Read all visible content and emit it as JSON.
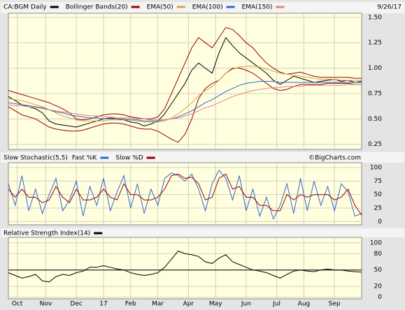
{
  "chart_data": [
    {
      "type": "line",
      "date_label": "9/26/17",
      "ylim": [
        0.2,
        1.54
      ],
      "yticks": [
        {
          "value": 1.5,
          "label": "1.50"
        },
        1.25,
        {
          "value": 1,
          "label": "1.00"
        },
        0.75,
        {
          "value": 0.5,
          "label": "0.50"
        },
        0.25
      ],
      "grid": true,
      "series": [
        {
          "name": "CA:BGM Daily",
          "color": "#000000",
          "values": [
            0.72,
            0.68,
            0.64,
            0.62,
            0.6,
            0.56,
            0.48,
            0.45,
            0.44,
            0.43,
            0.42,
            0.44,
            0.46,
            0.48,
            0.5,
            0.51,
            0.5,
            0.49,
            0.47,
            0.46,
            0.43,
            0.45,
            0.48,
            0.55,
            0.65,
            0.75,
            0.85,
            0.98,
            1.05,
            1.0,
            0.95,
            1.15,
            1.3,
            1.22,
            1.15,
            1.1,
            1.05,
            1.0,
            0.95,
            0.88,
            0.84,
            0.88,
            0.92,
            0.9,
            0.88,
            0.86,
            0.87,
            0.88,
            0.89,
            0.87,
            0.88,
            0.86,
            0.87
          ]
        },
        {
          "name": "Bollinger Bands(20)",
          "color": "#990000",
          "values": [
            0.78,
            0.76,
            0.74,
            0.72,
            0.7,
            0.68,
            0.66,
            0.63,
            0.6,
            0.56,
            0.5,
            0.49,
            0.5,
            0.52,
            0.54,
            0.55,
            0.55,
            0.54,
            0.52,
            0.51,
            0.5,
            0.5,
            0.52,
            0.6,
            0.75,
            0.9,
            1.05,
            1.2,
            1.3,
            1.25,
            1.2,
            1.3,
            1.4,
            1.38,
            1.32,
            1.25,
            1.2,
            1.12,
            1.05,
            1.0,
            0.96,
            0.94,
            0.95,
            0.96,
            0.94,
            0.92,
            0.91,
            0.91,
            0.91,
            0.91,
            0.91,
            0.9,
            0.9
          ],
          "lower": [
            0.62,
            0.58,
            0.54,
            0.52,
            0.5,
            0.46,
            0.42,
            0.4,
            0.39,
            0.38,
            0.38,
            0.39,
            0.41,
            0.43,
            0.45,
            0.46,
            0.46,
            0.45,
            0.43,
            0.41,
            0.4,
            0.4,
            0.38,
            0.34,
            0.3,
            0.27,
            0.35,
            0.5,
            0.7,
            0.8,
            0.85,
            0.88,
            0.95,
            1.0,
            1.0,
            0.98,
            0.95,
            0.9,
            0.85,
            0.8,
            0.78,
            0.79,
            0.82,
            0.84,
            0.84,
            0.84,
            0.84,
            0.85,
            0.85,
            0.85,
            0.85,
            0.84,
            0.84
          ]
        },
        {
          "name": "EMA(50)",
          "color": "#d9a441",
          "values": [
            0.7,
            0.69,
            0.68,
            0.66,
            0.64,
            0.62,
            0.59,
            0.56,
            0.53,
            0.51,
            0.49,
            0.48,
            0.48,
            0.48,
            0.48,
            0.49,
            0.49,
            0.49,
            0.49,
            0.48,
            0.47,
            0.47,
            0.47,
            0.48,
            0.51,
            0.55,
            0.6,
            0.66,
            0.73,
            0.78,
            0.82,
            0.88,
            0.95,
            0.99,
            1.01,
            1.02,
            1.02,
            1.01,
            0.99,
            0.97,
            0.95,
            0.94,
            0.93,
            0.92,
            0.91,
            0.9,
            0.89,
            0.89,
            0.89,
            0.88,
            0.88,
            0.88,
            0.88
          ]
        },
        {
          "name": "EMA(100)",
          "color": "#3366cc",
          "values": [
            0.66,
            0.65,
            0.64,
            0.63,
            0.62,
            0.61,
            0.59,
            0.57,
            0.56,
            0.54,
            0.53,
            0.52,
            0.51,
            0.51,
            0.5,
            0.5,
            0.5,
            0.5,
            0.49,
            0.49,
            0.48,
            0.48,
            0.48,
            0.49,
            0.5,
            0.52,
            0.55,
            0.58,
            0.62,
            0.66,
            0.69,
            0.73,
            0.77,
            0.8,
            0.83,
            0.85,
            0.86,
            0.87,
            0.87,
            0.87,
            0.86,
            0.86,
            0.86,
            0.86,
            0.86,
            0.86,
            0.86,
            0.86,
            0.86,
            0.86,
            0.86,
            0.86,
            0.86
          ]
        },
        {
          "name": "EMA(150)",
          "color": "#e08585",
          "values": [
            0.64,
            0.63,
            0.63,
            0.62,
            0.61,
            0.6,
            0.59,
            0.58,
            0.57,
            0.56,
            0.55,
            0.54,
            0.53,
            0.53,
            0.52,
            0.52,
            0.51,
            0.51,
            0.51,
            0.5,
            0.5,
            0.49,
            0.49,
            0.49,
            0.5,
            0.51,
            0.53,
            0.55,
            0.58,
            0.61,
            0.63,
            0.66,
            0.69,
            0.72,
            0.74,
            0.76,
            0.78,
            0.79,
            0.8,
            0.81,
            0.81,
            0.82,
            0.82,
            0.82,
            0.83,
            0.83,
            0.83,
            0.83,
            0.83,
            0.83,
            0.84,
            0.84,
            0.84
          ]
        }
      ]
    },
    {
      "type": "line",
      "title": "Slow Stochastic(5,5)",
      "source": "©BigCharts.com",
      "ylim": [
        -6,
        109
      ],
      "yticks": [
        100,
        75,
        50,
        25,
        0
      ],
      "grid": true,
      "series": [
        {
          "name": "Fast %K",
          "color": "#3366cc",
          "values": [
            70,
            30,
            85,
            20,
            60,
            15,
            50,
            80,
            20,
            40,
            75,
            10,
            65,
            30,
            80,
            20,
            55,
            85,
            25,
            70,
            15,
            60,
            30,
            80,
            90,
            85,
            75,
            88,
            60,
            20,
            70,
            95,
            80,
            40,
            85,
            20,
            60,
            10,
            45,
            5,
            30,
            70,
            15,
            80,
            20,
            75,
            30,
            65,
            20,
            70,
            55,
            10,
            15
          ]
        },
        {
          "name": "Slow %D",
          "color": "#990000",
          "values": [
            60,
            45,
            60,
            45,
            45,
            35,
            40,
            65,
            45,
            35,
            60,
            40,
            40,
            45,
            60,
            45,
            40,
            70,
            50,
            50,
            40,
            40,
            45,
            60,
            85,
            88,
            80,
            82,
            70,
            40,
            45,
            80,
            88,
            60,
            65,
            45,
            45,
            30,
            30,
            20,
            20,
            50,
            40,
            50,
            45,
            50,
            50,
            50,
            40,
            45,
            60,
            30,
            12
          ]
        }
      ]
    },
    {
      "type": "line",
      "ylim": [
        -3,
        110
      ],
      "yticks": [
        100,
        80,
        50,
        20,
        0
      ],
      "grid": true,
      "reference_line": 50,
      "xlim": [
        0,
        52
      ],
      "xticks": [
        {
          "value": 1.3,
          "label": "Oct"
        },
        {
          "value": 5.5,
          "label": "Nov"
        },
        {
          "value": 10,
          "label": "Dec"
        },
        {
          "value": 14,
          "label": "17"
        },
        {
          "value": 18,
          "label": "Feb"
        },
        {
          "value": 22,
          "label": "Mar"
        },
        {
          "value": 26.5,
          "label": "Apr"
        },
        {
          "value": 30.5,
          "label": "May"
        },
        {
          "value": 35,
          "label": "Jun"
        },
        {
          "value": 39.5,
          "label": "Jul"
        },
        {
          "value": 43.5,
          "label": "Aug"
        },
        {
          "value": 48,
          "label": "Sep"
        }
      ],
      "series": [
        {
          "name": "Relative Strength Index(14)",
          "color": "#000000",
          "values": [
            45,
            40,
            35,
            38,
            42,
            30,
            28,
            38,
            42,
            40,
            45,
            48,
            55,
            55,
            58,
            55,
            52,
            50,
            45,
            42,
            40,
            42,
            45,
            55,
            70,
            85,
            80,
            78,
            75,
            65,
            62,
            72,
            78,
            65,
            60,
            55,
            50,
            48,
            45,
            40,
            35,
            42,
            48,
            50,
            48,
            47,
            50,
            52,
            50,
            50,
            48,
            47,
            46
          ]
        }
      ]
    }
  ]
}
